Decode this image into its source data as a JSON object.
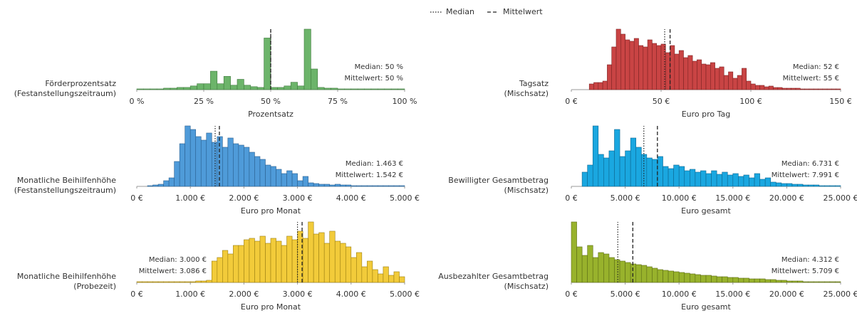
{
  "legend": [
    {
      "name": "Median",
      "style": "dotted"
    },
    {
      "name": "Mittelwert",
      "style": "dashed"
    }
  ],
  "chart_data": [
    {
      "type": "histogram",
      "ylabel": [
        "Förderprozentsatz",
        "(Festanstellungszeitraum)"
      ],
      "xlabel": "Prozentsatz",
      "color": "#6cb46a",
      "edge": "#3f7a3d",
      "bins": [
        0,
        2.5,
        5,
        7.5,
        10,
        12.5,
        15,
        17.5,
        20,
        22.5,
        25,
        27.5,
        30,
        32.5,
        35,
        37.5,
        40,
        42.5,
        45,
        47.5,
        50,
        52.5,
        55,
        57.5,
        60,
        62.5,
        65,
        67.5,
        70,
        72.5,
        75,
        77.5,
        80,
        82.5,
        85,
        87.5,
        90,
        92.5,
        95,
        97.5,
        100
      ],
      "counts": [
        1,
        1,
        1,
        1,
        2,
        2,
        3,
        3,
        5,
        8,
        8,
        25,
        8,
        18,
        6,
        14,
        6,
        4,
        3,
        70,
        3,
        3,
        5,
        10,
        5,
        82,
        28,
        3,
        2,
        2,
        1,
        1,
        1,
        1,
        1,
        1,
        1,
        1,
        1,
        1
      ],
      "median": 50,
      "mean": 50,
      "annotations": [
        "Median: 50 %",
        "Mittelwert: 50 %"
      ],
      "xlim": [
        0,
        100
      ],
      "xticks": [
        {
          "value": 0,
          "label": "0 %"
        },
        {
          "value": 25,
          "label": "25 %"
        },
        {
          "value": 50,
          "label": "50 %"
        },
        {
          "value": 75,
          "label": "75 %"
        },
        {
          "value": 100,
          "label": "100 %"
        }
      ]
    },
    {
      "type": "histogram",
      "ylabel": [
        "Tagsatz",
        "(Mischsatz)"
      ],
      "xlabel": "Euro pro Tag",
      "color": "#c94444",
      "edge": "#7d2424",
      "bins": [
        0,
        2.5,
        5,
        7.5,
        10,
        12.5,
        15,
        17.5,
        20,
        22.5,
        25,
        27.5,
        30,
        32.5,
        35,
        37.5,
        40,
        42.5,
        45,
        47.5,
        50,
        52.5,
        55,
        57.5,
        60,
        62.5,
        65,
        67.5,
        70,
        72.5,
        75,
        77.5,
        80,
        82.5,
        85,
        87.5,
        90,
        92.5,
        95,
        97.5,
        100,
        102.5,
        105,
        107.5,
        110,
        112.5,
        115,
        117.5,
        120,
        122.5,
        125,
        127.5,
        130,
        132.5,
        135,
        137.5,
        140,
        142.5,
        145,
        147.5,
        150
      ],
      "counts": [
        0,
        0,
        0,
        0,
        8,
        10,
        10,
        12,
        35,
        60,
        85,
        78,
        70,
        68,
        72,
        62,
        60,
        70,
        65,
        62,
        64,
        52,
        62,
        50,
        55,
        45,
        48,
        40,
        42,
        36,
        35,
        38,
        30,
        32,
        20,
        25,
        16,
        20,
        30,
        12,
        8,
        6,
        6,
        4,
        5,
        3,
        3,
        2,
        2,
        2,
        2,
        1,
        1,
        1,
        1,
        1,
        1,
        1,
        1,
        1
      ],
      "median": 52,
      "mean": 55,
      "annotations": [
        "Median: 52 €",
        "Mittelwert: 55 €"
      ],
      "xlim": [
        0,
        150
      ],
      "xticks": [
        {
          "value": 0,
          "label": "0 €"
        },
        {
          "value": 50,
          "label": "50 €"
        },
        {
          "value": 100,
          "label": "100 €"
        },
        {
          "value": 150,
          "label": "150 €"
        }
      ]
    },
    {
      "type": "histogram",
      "ylabel": [
        "Monatliche Beihilfenhöhe",
        "(Festanstellungszeitraum)"
      ],
      "xlabel": "Euro pro Monat",
      "color": "#4f9bd9",
      "edge": "#2a5f8f",
      "bins": [
        0,
        100,
        200,
        300,
        400,
        500,
        600,
        700,
        800,
        900,
        1000,
        1100,
        1200,
        1300,
        1400,
        1500,
        1600,
        1700,
        1800,
        1900,
        2000,
        2100,
        2200,
        2300,
        2400,
        2500,
        2600,
        2700,
        2800,
        2900,
        3000,
        3100,
        3200,
        3300,
        3400,
        3500,
        3600,
        3700,
        3800,
        3900,
        4000,
        4100,
        4200,
        4300,
        4400,
        4500,
        4600,
        4700,
        4800,
        4900,
        5000
      ],
      "counts": [
        0,
        0,
        1,
        2,
        3,
        8,
        12,
        35,
        60,
        85,
        80,
        70,
        65,
        75,
        62,
        70,
        55,
        68,
        60,
        58,
        55,
        48,
        42,
        38,
        30,
        28,
        24,
        18,
        22,
        18,
        8,
        14,
        5,
        4,
        3,
        3,
        2,
        3,
        2,
        2,
        1,
        1,
        1,
        1,
        1,
        1,
        1,
        1,
        1,
        1
      ],
      "median": 1463,
      "mean": 1542,
      "annotations": [
        "Median: 1.463 €",
        "Mittelwert: 1.542 €"
      ],
      "xlim": [
        0,
        5000
      ],
      "xticks": [
        {
          "value": 0,
          "label": "0 €"
        },
        {
          "value": 1000,
          "label": "1.000 €"
        },
        {
          "value": 2000,
          "label": "2.000 €"
        },
        {
          "value": 3000,
          "label": "3.000 €"
        },
        {
          "value": 4000,
          "label": "4.000 €"
        },
        {
          "value": 5000,
          "label": "5.000 €"
        }
      ]
    },
    {
      "type": "histogram",
      "ylabel": [
        "Bewilligter Gesamtbetrag",
        "(Mischsatz)"
      ],
      "xlabel": "Euro gesamt",
      "color": "#1aa7e0",
      "edge": "#0d6690",
      "bins": [
        0,
        500,
        1000,
        1500,
        2000,
        2500,
        3000,
        3500,
        4000,
        4500,
        5000,
        5500,
        6000,
        6500,
        7000,
        7500,
        8000,
        8500,
        9000,
        9500,
        10000,
        10500,
        11000,
        11500,
        12000,
        12500,
        13000,
        13500,
        14000,
        14500,
        15000,
        15500,
        16000,
        16500,
        17000,
        17500,
        18000,
        18500,
        19000,
        19500,
        20000,
        20500,
        21000,
        21500,
        22000,
        22500,
        23000,
        23500,
        24000,
        24500,
        25000
      ],
      "counts": [
        0,
        0,
        20,
        30,
        85,
        45,
        40,
        50,
        80,
        42,
        50,
        68,
        55,
        45,
        40,
        38,
        42,
        28,
        25,
        30,
        28,
        22,
        24,
        20,
        22,
        18,
        22,
        17,
        20,
        16,
        18,
        14,
        16,
        12,
        18,
        10,
        12,
        6,
        5,
        4,
        4,
        3,
        3,
        2,
        2,
        2,
        1,
        1,
        1,
        1
      ],
      "median": 6731,
      "mean": 7991,
      "annotations": [
        "Median: 6.731 €",
        "Mittelwert: 7.991 €"
      ],
      "xlim": [
        0,
        25000
      ],
      "xticks": [
        {
          "value": 0,
          "label": "0 €"
        },
        {
          "value": 5000,
          "label": "5.000 €"
        },
        {
          "value": 10000,
          "label": "10.000 €"
        },
        {
          "value": 15000,
          "label": "15.000 €"
        },
        {
          "value": 20000,
          "label": "20.000 €"
        },
        {
          "value": 25000,
          "label": "25.000 €"
        }
      ]
    },
    {
      "type": "histogram",
      "ylabel": [
        "Monatliche Beihilfenhöhe",
        "(Probezeit)"
      ],
      "xlabel": "Euro pro Monat",
      "color": "#f2cb3a",
      "edge": "#9a7d12",
      "bins": [
        0,
        100,
        200,
        300,
        400,
        500,
        600,
        700,
        800,
        900,
        1000,
        1100,
        1200,
        1300,
        1400,
        1500,
        1600,
        1700,
        1800,
        1900,
        2000,
        2100,
        2200,
        2300,
        2400,
        2500,
        2600,
        2700,
        2800,
        2900,
        3000,
        3100,
        3200,
        3300,
        3400,
        3500,
        3600,
        3700,
        3800,
        3900,
        4000,
        4100,
        4200,
        4300,
        4400,
        4500,
        4600,
        4700,
        4800,
        4900,
        5000
      ],
      "counts": [
        1,
        1,
        1,
        1,
        1,
        1,
        1,
        1,
        1,
        1,
        1,
        2,
        2,
        3,
        30,
        35,
        45,
        40,
        52,
        52,
        60,
        62,
        58,
        65,
        55,
        62,
        58,
        52,
        65,
        60,
        72,
        62,
        85,
        68,
        70,
        55,
        72,
        58,
        55,
        50,
        35,
        42,
        22,
        30,
        18,
        12,
        22,
        10,
        15,
        8
      ],
      "median": 3000,
      "mean": 3086,
      "annotations": [
        "Median: 3.000 €",
        "Mittelwert: 3.086 €"
      ],
      "xlim": [
        0,
        5000
      ],
      "xticks": [
        {
          "value": 0,
          "label": "0 €"
        },
        {
          "value": 1000,
          "label": "1.000 €"
        },
        {
          "value": 2000,
          "label": "2.000 €"
        },
        {
          "value": 3000,
          "label": "3.000 €"
        },
        {
          "value": 4000,
          "label": "4.000 €"
        },
        {
          "value": 5000,
          "label": "5.000 €"
        }
      ]
    },
    {
      "type": "histogram",
      "ylabel": [
        "Ausbezahlter Gesamtbetrag",
        "(Mischsatz)"
      ],
      "xlabel": "Euro gesamt",
      "color": "#98b22c",
      "edge": "#5c6d17",
      "bins": [
        0,
        500,
        1000,
        1500,
        2000,
        2500,
        3000,
        3500,
        4000,
        4500,
        5000,
        5500,
        6000,
        6500,
        7000,
        7500,
        8000,
        8500,
        9000,
        9500,
        10000,
        10500,
        11000,
        11500,
        12000,
        12500,
        13000,
        13500,
        14000,
        14500,
        15000,
        15500,
        16000,
        16500,
        17000,
        17500,
        18000,
        18500,
        19000,
        19500,
        20000,
        20500,
        21000,
        21500,
        22000,
        22500,
        23000,
        23500,
        24000,
        24500,
        25000
      ],
      "counts": [
        85,
        50,
        38,
        52,
        35,
        42,
        40,
        35,
        32,
        30,
        28,
        26,
        25,
        24,
        22,
        20,
        18,
        17,
        16,
        15,
        14,
        13,
        12,
        11,
        10,
        10,
        9,
        8,
        8,
        7,
        7,
        6,
        6,
        5,
        5,
        5,
        4,
        4,
        3,
        3,
        2,
        2,
        2,
        1,
        1,
        1,
        1,
        1,
        1,
        1
      ],
      "median": 4312,
      "mean": 5709,
      "annotations": [
        "Median: 4.312 €",
        "Mittelwert: 5.709 €"
      ],
      "xlim": [
        0,
        25000
      ],
      "xticks": [
        {
          "value": 0,
          "label": "0 €"
        },
        {
          "value": 5000,
          "label": "5.000 €"
        },
        {
          "value": 10000,
          "label": "10.000 €"
        },
        {
          "value": 15000,
          "label": "15.000 €"
        },
        {
          "value": 20000,
          "label": "20.000 €"
        },
        {
          "value": 25000,
          "label": "25.000 €"
        }
      ]
    }
  ]
}
